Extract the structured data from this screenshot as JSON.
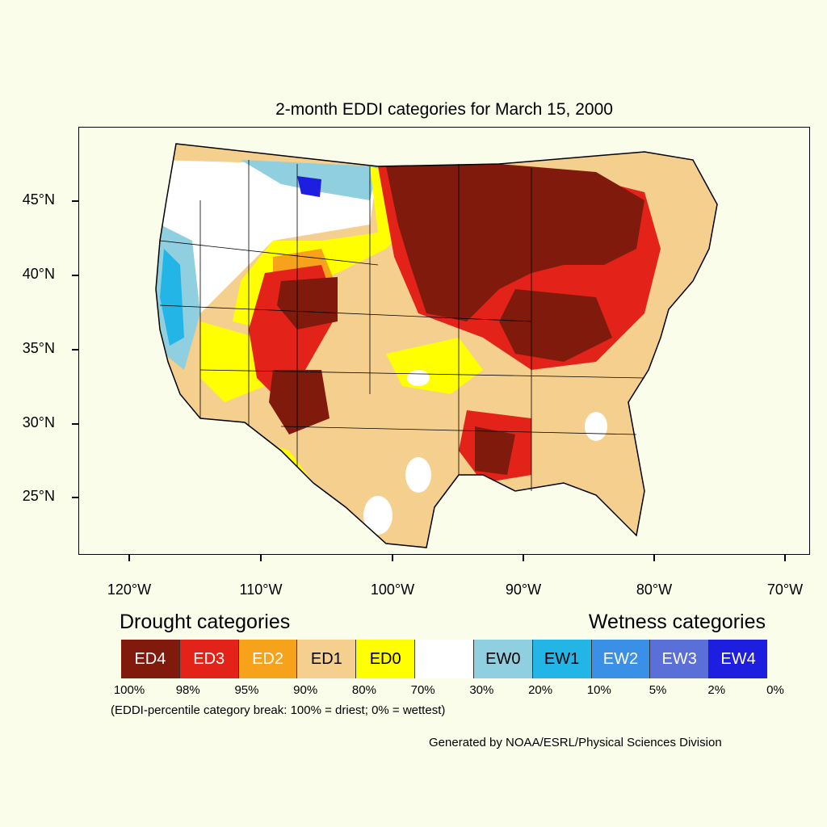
{
  "title": "2-month EDDI categories for March 15, 2000",
  "latitude_labels": [
    "45°N",
    "40°N",
    "35°N",
    "30°N",
    "25°N"
  ],
  "longitude_labels": [
    "120°W",
    "110°W",
    "100°W",
    "90°W",
    "80°W",
    "70°W"
  ],
  "legend": {
    "drought_heading": "Drought categories",
    "wetness_heading": "Wetness categories",
    "categories": [
      {
        "label": "ED4",
        "color": "#7f1a0c"
      },
      {
        "label": "ED3",
        "color": "#e3231a"
      },
      {
        "label": "ED2",
        "color": "#f7a21b"
      },
      {
        "label": "ED1",
        "color": "#f5cf8e"
      },
      {
        "label": "ED0",
        "color": "#ffff00"
      },
      {
        "label": "",
        "color": "#ffffff"
      },
      {
        "label": "EW0",
        "color": "#8fcfe0"
      },
      {
        "label": "EW1",
        "color": "#22b5e6"
      },
      {
        "label": "EW2",
        "color": "#3a8fe6"
      },
      {
        "label": "EW3",
        "color": "#5a6fd8"
      },
      {
        "label": "EW4",
        "color": "#1e1ee0"
      }
    ],
    "percentile_breaks": [
      "100%",
      "98%",
      "95%",
      "90%",
      "80%",
      "70%",
      "30%",
      "20%",
      "10%",
      "5%",
      "2%",
      "0%"
    ],
    "note": "(EDDI-percentile category break: 100% = driest; 0% = wettest)"
  },
  "credit": "Generated by NOAA/ESRL/Physical Sciences Division"
}
